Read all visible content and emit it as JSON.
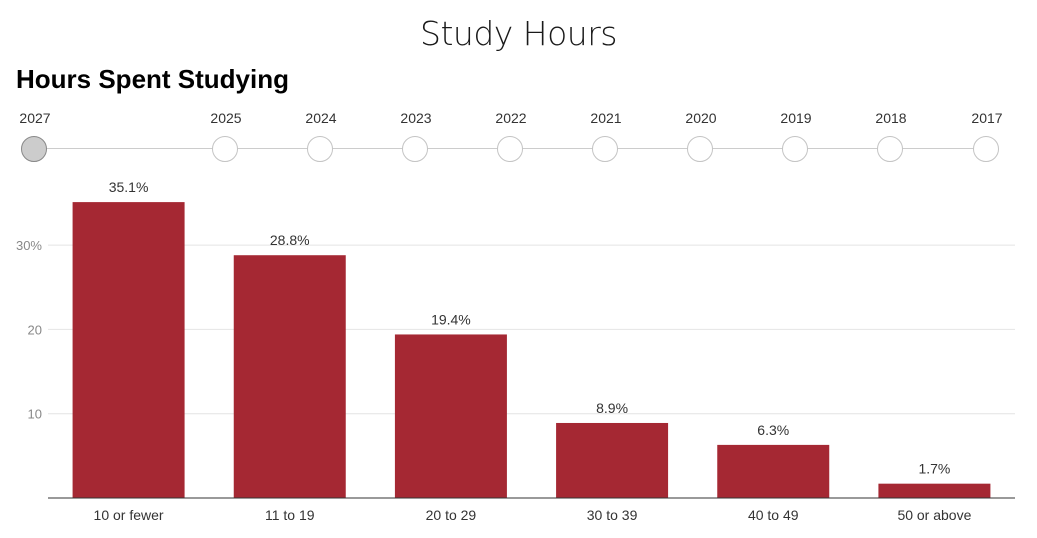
{
  "header": {
    "title": "Study Hours"
  },
  "timeline": {
    "years": [
      "2027",
      "2025",
      "2024",
      "2023",
      "2022",
      "2021",
      "2020",
      "2019",
      "2018",
      "2017"
    ],
    "selected": "2027"
  },
  "chart_data": {
    "type": "bar",
    "title": "Hours Spent Studying",
    "xlabel": "",
    "ylabel": "",
    "categories": [
      "10 or fewer",
      "11 to 19",
      "20 to 29",
      "30 to 39",
      "40 to 49",
      "50 or above"
    ],
    "values": [
      35.1,
      28.8,
      19.4,
      8.9,
      6.3,
      1.7
    ],
    "data_labels": [
      "35.1%",
      "28.8%",
      "19.4%",
      "8.9%",
      "6.3%",
      "1.7%"
    ],
    "y_ticks": [
      10,
      20,
      30
    ],
    "y_tick_labels": [
      "10",
      "20",
      "30%"
    ],
    "ylim": [
      0,
      40
    ],
    "grid": true,
    "legend": "none",
    "bar_color": "#a52833"
  }
}
